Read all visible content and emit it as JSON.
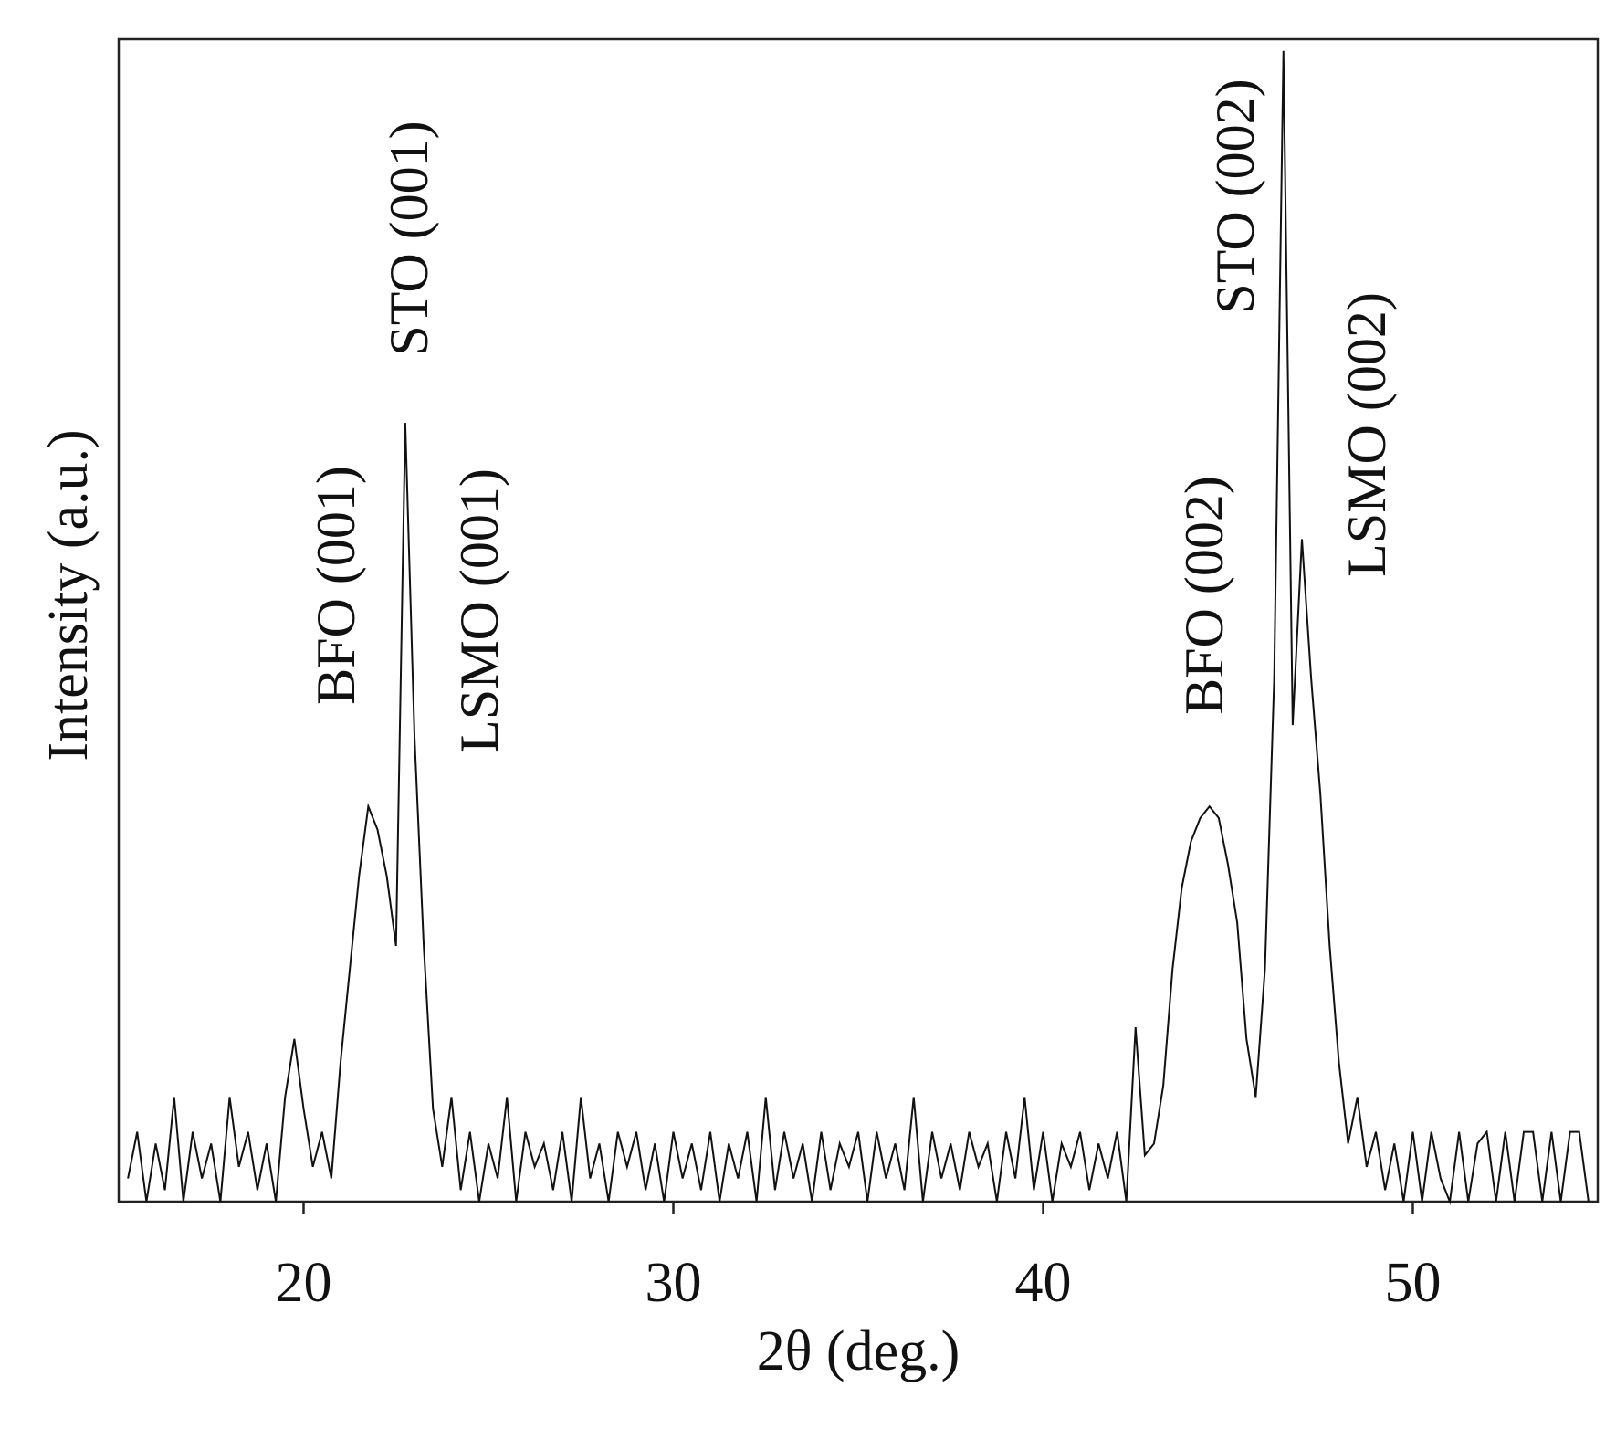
{
  "chart_data": {
    "type": "line",
    "x_label": "2θ (deg.)",
    "y_label": "Intensity (a.u.)",
    "annotations": [
      "BFO (001)",
      "STO (001)",
      "LSMO (001)",
      "BFO (002)",
      "STO (002)",
      "LSMO (002)"
    ],
    "color": "#111111",
    "xlim": [
      15,
      55
    ],
    "xticks": [
      20,
      30,
      40,
      50
    ],
    "ylim": [
      0,
      100
    ],
    "x": [
      15.25,
      15.5,
      15.75,
      16,
      16.25,
      16.5,
      16.75,
      17,
      17.25,
      17.5,
      17.75,
      18,
      18.25,
      18.5,
      18.75,
      19,
      19.25,
      19.5,
      19.75,
      20,
      20.25,
      20.5,
      20.75,
      21,
      21.25,
      21.5,
      21.75,
      22,
      22.25,
      22.5,
      22.75,
      23,
      23.25,
      23.5,
      23.75,
      24,
      24.25,
      24.5,
      24.75,
      25,
      25.25,
      25.5,
      25.75,
      26,
      26.25,
      26.5,
      26.75,
      27,
      27.25,
      27.5,
      27.75,
      28,
      28.25,
      28.5,
      28.75,
      29,
      29.25,
      29.5,
      29.75,
      30,
      30.25,
      30.5,
      30.75,
      31,
      31.25,
      31.5,
      31.75,
      32,
      32.25,
      32.5,
      32.75,
      33,
      33.25,
      33.5,
      33.75,
      34,
      34.25,
      34.5,
      34.75,
      35,
      35.25,
      35.5,
      35.75,
      36,
      36.25,
      36.5,
      36.75,
      37,
      37.25,
      37.5,
      37.75,
      38,
      38.25,
      38.5,
      38.75,
      39,
      39.25,
      39.5,
      39.75,
      40,
      40.25,
      40.5,
      40.75,
      41,
      41.25,
      41.5,
      41.75,
      42,
      42.25,
      42.5,
      42.75,
      43,
      43.25,
      43.5,
      43.75,
      44,
      44.25,
      44.5,
      44.75,
      45,
      45.25,
      45.5,
      45.75,
      46,
      46.25,
      46.5,
      46.75,
      47,
      47.25,
      47.5,
      47.75,
      48,
      48.25,
      48.5,
      48.75,
      49,
      49.25,
      49.5,
      49.75,
      50,
      50.25,
      50.5,
      50.75,
      51,
      51.25,
      51.5,
      51.75,
      52,
      52.25,
      52.5,
      52.75,
      53,
      53.25,
      53.5,
      53.75,
      54,
      54.25,
      54.5,
      54.75
    ],
    "values": [
      2,
      6,
      0,
      5,
      1,
      9,
      0,
      6,
      2,
      5,
      0,
      9,
      3,
      6,
      1,
      5,
      0,
      9,
      14,
      8,
      3,
      6,
      2,
      12,
      20,
      28,
      34,
      32,
      28,
      22,
      67,
      40,
      22,
      8,
      3,
      9,
      1,
      6,
      0,
      5,
      2,
      9,
      0,
      6,
      3,
      5,
      1,
      6,
      0,
      9,
      2,
      5,
      0,
      6,
      3,
      6,
      1,
      5,
      0,
      6,
      2,
      5,
      1,
      6,
      0,
      5,
      2,
      6,
      0,
      9,
      1,
      6,
      2,
      5,
      0,
      6,
      1,
      5,
      3,
      6,
      0,
      6,
      2,
      5,
      1,
      9,
      0,
      6,
      2,
      5,
      1,
      6,
      3,
      5,
      0,
      6,
      2,
      9,
      1,
      6,
      0,
      5,
      3,
      6,
      1,
      5,
      2,
      6,
      0,
      15,
      4,
      5,
      10,
      20,
      27,
      31,
      33,
      34,
      33,
      29,
      24,
      14,
      9,
      20,
      45,
      99,
      41,
      57,
      45,
      35,
      22,
      12,
      5,
      9,
      3,
      6,
      1,
      5,
      0,
      6,
      0,
      6,
      2,
      0,
      6,
      0,
      5,
      6,
      0,
      6,
      0,
      6,
      6,
      0,
      6,
      0,
      6,
      6,
      0
    ]
  }
}
